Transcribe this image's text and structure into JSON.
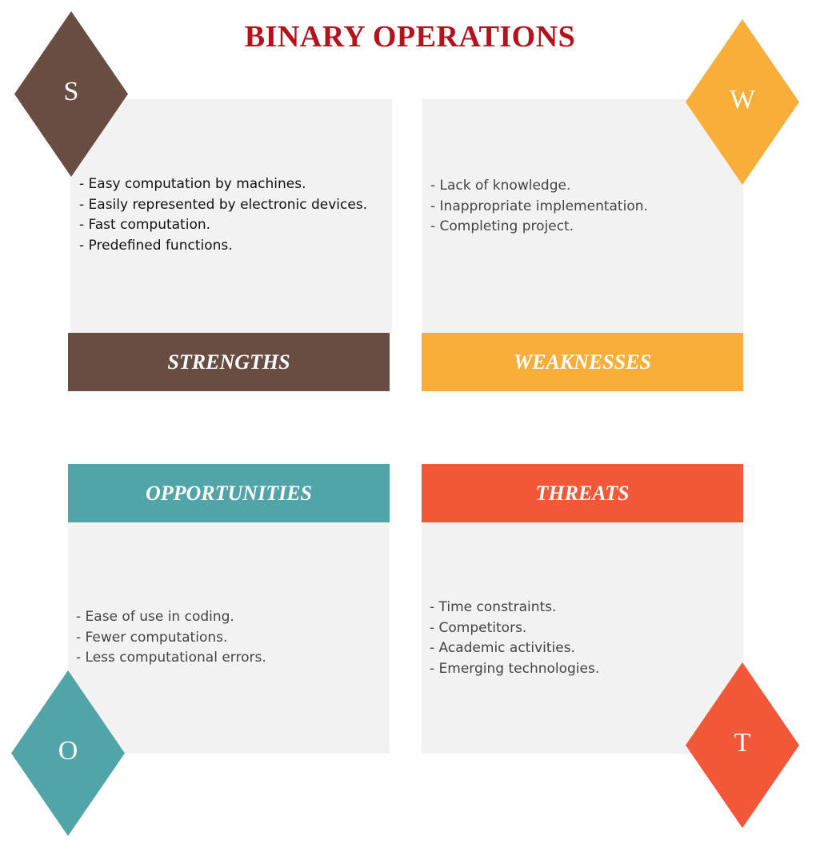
{
  "title": "BINARY OPERATIONS",
  "colors": {
    "title": "#b5121b",
    "strengths": "#6a4d42",
    "weaknesses": "#f8ae39",
    "opportunities": "#51a5a8",
    "threats": "#f25838",
    "panel": "#f2f2f2",
    "text_dark": "#111111",
    "text_gray": "#444444"
  },
  "strengths": {
    "letter": "S",
    "label": "STRENGTHS",
    "items": [
      "- Easy computation by machines.",
      "- Easily represented by electronic devices.",
      "- Fast computation.",
      "- Predefined functions."
    ]
  },
  "weaknesses": {
    "letter": "W",
    "label": "WEAKNESSES",
    "items": [
      "- Lack of knowledge.",
      "- Inappropriate implementation.",
      "- Completing project."
    ]
  },
  "opportunities": {
    "letter": "O",
    "label": "OPPORTUNITIES",
    "items": [
      "- Ease of use in coding.",
      "- Fewer computations.",
      "- Less computational errors."
    ]
  },
  "threats": {
    "letter": "T",
    "label": "THREATS",
    "items": [
      "- Time constraints.",
      "- Competitors.",
      "- Academic activities.",
      "- Emerging technologies."
    ]
  }
}
